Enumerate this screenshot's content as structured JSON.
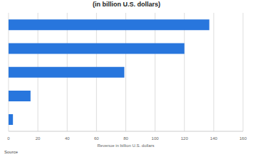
{
  "chart_data": {
    "type": "bar",
    "orientation": "horizontal",
    "title": "(in billion U.S. dollars)",
    "x_label": "Revenue in billion U.S. dollars",
    "source": "Source",
    "categories": [
      null,
      null,
      null,
      null,
      null
    ],
    "values": [
      137,
      120,
      79,
      15,
      3
    ],
    "color": "#2876dd",
    "xlim": [
      0,
      160
    ],
    "xticks": [
      0,
      20,
      40,
      60,
      80,
      100,
      120,
      140,
      160
    ],
    "grid": true
  }
}
